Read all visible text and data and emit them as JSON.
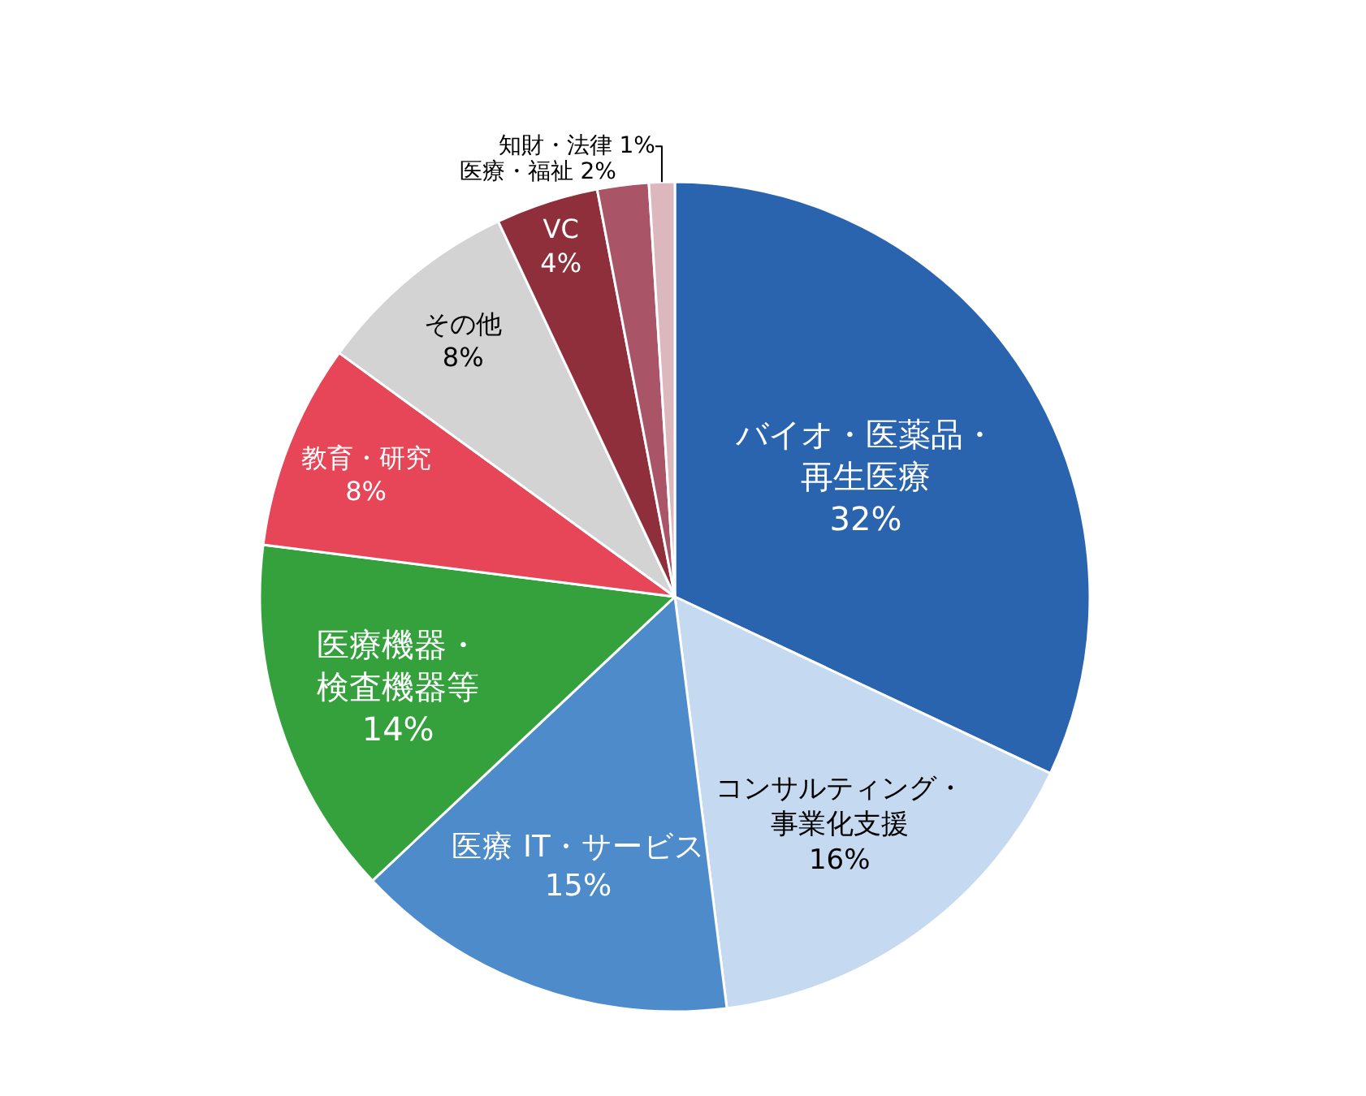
{
  "chart_data": {
    "type": "pie",
    "categories": [
      "バイオ・医薬品・再生医療",
      "コンサルティング・事業化支援",
      "医療 IT・サービス",
      "医療機器・検査機器等",
      "教育・研究",
      "その他",
      "VC",
      "医療・福祉",
      "知財・法律"
    ],
    "values": [
      32,
      16,
      15,
      14,
      8,
      8,
      4,
      2,
      1
    ],
    "value_labels": [
      "32%",
      "16%",
      "15%",
      "14%",
      "8%",
      "8%",
      "4%",
      "2%",
      "1%"
    ],
    "colors": [
      "#2a63ae",
      "#c5d9f0",
      "#4d8bca",
      "#34a13d",
      "#e64657",
      "#d3d3d3",
      "#8e2f3b",
      "#aa5468",
      "#dcb7be"
    ],
    "legend": false
  }
}
